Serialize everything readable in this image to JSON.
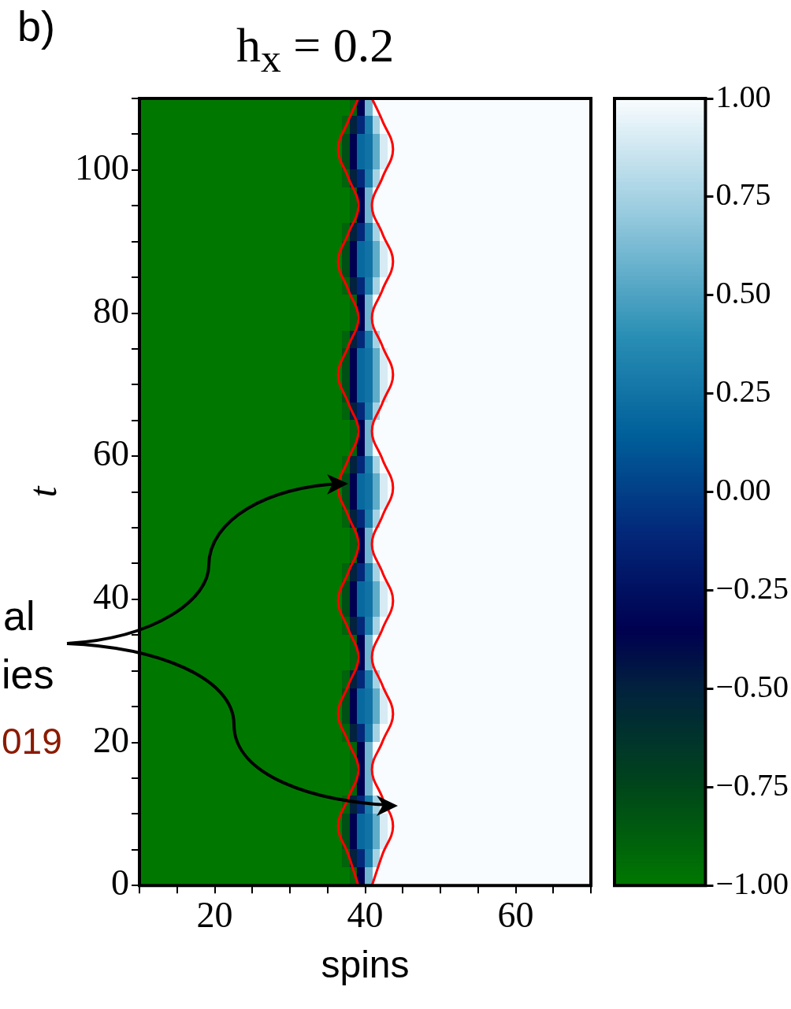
{
  "chart_data": {
    "type": "heatmap",
    "title": "h$_{x}$ = 0.2",
    "xlabel": "spins",
    "ylabel": "t",
    "annotations": [
      "b)",
      "al",
      "ies",
      "019"
    ],
    "xlim": [
      10,
      70
    ],
    "ylim": [
      0,
      110
    ],
    "xticks": [
      {
        "value": 10,
        "label": null
      },
      {
        "value": 15,
        "label": null
      },
      20,
      {
        "value": 25,
        "label": null
      },
      {
        "value": 30,
        "label": null
      },
      {
        "value": 35,
        "label": null
      },
      40,
      {
        "value": 45,
        "label": null
      },
      {
        "value": 50,
        "label": null
      },
      {
        "value": 55,
        "label": null
      },
      60,
      {
        "value": 65,
        "label": null
      },
      {
        "value": 70,
        "label": null
      }
    ],
    "yticks": [
      0,
      {
        "value": 5,
        "label": null
      },
      {
        "value": 10,
        "label": null
      },
      {
        "value": 15,
        "label": null
      },
      20,
      {
        "value": 25,
        "label": null
      },
      {
        "value": 30,
        "label": null
      },
      {
        "value": 35,
        "label": null
      },
      40,
      {
        "value": 45,
        "label": null
      },
      {
        "value": 50,
        "label": null
      },
      {
        "value": 55,
        "label": null
      },
      60,
      {
        "value": 65,
        "label": null
      },
      {
        "value": 70,
        "label": null
      },
      {
        "value": 75,
        "label": null
      },
      80,
      {
        "value": 85,
        "label": null
      },
      {
        "value": 90,
        "label": null
      },
      {
        "value": 95,
        "label": null
      },
      100,
      {
        "value": 105,
        "label": null
      },
      {
        "value": 110,
        "label": null
      }
    ],
    "clim": [
      -1,
      1
    ],
    "cticks": [
      {
        "value": -1,
        "label": "−1.00"
      },
      {
        "value": -0.75,
        "label": "−0.75"
      },
      {
        "value": -0.5,
        "label": "−0.50"
      },
      {
        "value": -0.25,
        "label": "−0.25"
      },
      {
        "value": 0,
        "label": "0.00"
      },
      {
        "value": 0.25,
        "label": "0.25"
      },
      {
        "value": 0.5,
        "label": "0.50"
      },
      {
        "value": 0.75,
        "label": "0.75"
      },
      {
        "value": 1,
        "label": "1.00"
      }
    ],
    "marker": "none",
    "line_style": "solid",
    "series": [
      {
        "type": "line",
        "color": "#ff0000",
        "x": [
          39.1,
          37.75,
          36.4,
          37.75,
          39.1,
          37.75,
          36.4,
          37.75,
          39.1,
          37.75,
          36.4,
          37.75,
          39.1,
          37.75,
          36.4,
          37.75,
          39.1,
          37.75,
          36.4,
          37.75,
          39.1,
          37.75,
          36.4,
          37.75,
          39.1,
          37.75,
          36.4,
          37.75,
          39.1
        ],
        "values": [
          0,
          4.35,
          8.3,
          12.25,
          16.2,
          20.1,
          24,
          27.95,
          31.9,
          35.85,
          39.8,
          43.75,
          47.7,
          51.65,
          55.6,
          59.55,
          63.5,
          67.45,
          71.4,
          75.35,
          79.3,
          83.25,
          87.2,
          91.1,
          95,
          98.95,
          102.9,
          106.85,
          110
        ]
      },
      {
        "type": "line",
        "color": "#ff0000",
        "x": [
          40.9,
          42.3,
          43.7,
          42.3,
          40.9,
          42.3,
          43.7,
          42.3,
          40.9,
          42.3,
          43.7,
          42.3,
          40.9,
          42.3,
          43.7,
          42.3,
          40.9,
          42.3,
          43.7,
          42.3,
          40.9,
          42.3,
          43.7,
          42.3,
          40.9,
          42.3,
          43.7,
          42.3,
          40.9
        ],
        "values": [
          0,
          4.35,
          8.3,
          12.25,
          16.2,
          20.1,
          24,
          27.95,
          31.9,
          35.85,
          39.8,
          43.75,
          47.7,
          51.65,
          55.6,
          59.55,
          63.5,
          67.45,
          71.4,
          75.35,
          79.3,
          83.25,
          87.2,
          91.1,
          95,
          98.95,
          102.9,
          106.85,
          110
        ]
      }
    ],
    "cells": [
      [
        -1,
        -1,
        -1,
        -1,
        -1,
        -1,
        -1,
        -1,
        -1,
        -1,
        -1,
        -1,
        -1,
        -1,
        -1,
        -1,
        -1,
        -1,
        -1,
        -1,
        -1,
        -1,
        -1,
        -1,
        -1,
        -1,
        -1,
        -1,
        -0.9,
        -0.35,
        0.6,
        1,
        1,
        1,
        1,
        1,
        1,
        1,
        1,
        1,
        1,
        1,
        1,
        1,
        1,
        1,
        1,
        1,
        1,
        1,
        1,
        1,
        1,
        1,
        1,
        1,
        1,
        1,
        1,
        1
      ],
      [
        -1,
        -1,
        -1,
        -1,
        -1,
        -1,
        -1,
        -1,
        -1,
        -1,
        -1,
        -1,
        -1,
        -1,
        -1,
        -1,
        -1,
        -1,
        -1,
        -1,
        -1,
        -1,
        -1,
        -1,
        -1,
        -1,
        -1,
        -0.9,
        -0.5,
        -0.1,
        0.3,
        0.75,
        1,
        1,
        1,
        1,
        1,
        1,
        1,
        1,
        1,
        1,
        1,
        1,
        1,
        1,
        1,
        1,
        1,
        1,
        1,
        1,
        1,
        1,
        1,
        1,
        1,
        1,
        1,
        1
      ],
      [
        -1,
        -1,
        -1,
        -1,
        -1,
        -1,
        -1,
        -1,
        -1,
        -1,
        -1,
        -1,
        -1,
        -1,
        -1,
        -1,
        -1,
        -1,
        -1,
        -1,
        -1,
        -1,
        -1,
        -1,
        -1,
        -1,
        -1,
        -0.8,
        -0.35,
        0.2,
        0.25,
        0.55,
        0.9,
        1,
        1,
        1,
        1,
        1,
        1,
        1,
        1,
        1,
        1,
        1,
        1,
        1,
        1,
        1,
        1,
        1,
        1,
        1,
        1,
        1,
        1,
        1,
        1,
        1,
        1,
        1
      ],
      [
        -1,
        -1,
        -1,
        -1,
        -1,
        -1,
        -1,
        -1,
        -1,
        -1,
        -1,
        -1,
        -1,
        -1,
        -1,
        -1,
        -1,
        -1,
        -1,
        -1,
        -1,
        -1,
        -1,
        -1,
        -1,
        -1,
        -1,
        -0.8,
        -0.35,
        0.2,
        0.25,
        0.55,
        0.9,
        1,
        1,
        1,
        1,
        1,
        1,
        1,
        1,
        1,
        1,
        1,
        1,
        1,
        1,
        1,
        1,
        1,
        1,
        1,
        1,
        1,
        1,
        1,
        1,
        1,
        1,
        1
      ],
      [
        -1,
        -1,
        -1,
        -1,
        -1,
        -1,
        -1,
        -1,
        -1,
        -1,
        -1,
        -1,
        -1,
        -1,
        -1,
        -1,
        -1,
        -1,
        -1,
        -1,
        -1,
        -1,
        -1,
        -1,
        -1,
        -1,
        -1,
        -0.9,
        -0.5,
        -0.1,
        0.3,
        0.75,
        1,
        1,
        1,
        1,
        1,
        1,
        1,
        1,
        1,
        1,
        1,
        1,
        1,
        1,
        1,
        1,
        1,
        1,
        1,
        1,
        1,
        1,
        1,
        1,
        1,
        1,
        1,
        1
      ],
      [
        -1,
        -1,
        -1,
        -1,
        -1,
        -1,
        -1,
        -1,
        -1,
        -1,
        -1,
        -1,
        -1,
        -1,
        -1,
        -1,
        -1,
        -1,
        -1,
        -1,
        -1,
        -1,
        -1,
        -1,
        -1,
        -1,
        -1,
        -1,
        -0.9,
        -0.35,
        0.6,
        1,
        1,
        1,
        1,
        1,
        1,
        1,
        1,
        1,
        1,
        1,
        1,
        1,
        1,
        1,
        1,
        1,
        1,
        1,
        1,
        1,
        1,
        1,
        1,
        1,
        1,
        1,
        1,
        1
      ],
      [
        -1,
        -1,
        -1,
        -1,
        -1,
        -1,
        -1,
        -1,
        -1,
        -1,
        -1,
        -1,
        -1,
        -1,
        -1,
        -1,
        -1,
        -1,
        -1,
        -1,
        -1,
        -1,
        -1,
        -1,
        -1,
        -1,
        -1,
        -1,
        -0.9,
        -0.35,
        0.6,
        1,
        1,
        1,
        1,
        1,
        1,
        1,
        1,
        1,
        1,
        1,
        1,
        1,
        1,
        1,
        1,
        1,
        1,
        1,
        1,
        1,
        1,
        1,
        1,
        1,
        1,
        1,
        1,
        1
      ],
      [
        -1,
        -1,
        -1,
        -1,
        -1,
        -1,
        -1,
        -1,
        -1,
        -1,
        -1,
        -1,
        -1,
        -1,
        -1,
        -1,
        -1,
        -1,
        -1,
        -1,
        -1,
        -1,
        -1,
        -1,
        -1,
        -1,
        -1,
        -0.9,
        -0.5,
        -0.1,
        0.3,
        0.75,
        1,
        1,
        1,
        1,
        1,
        1,
        1,
        1,
        1,
        1,
        1,
        1,
        1,
        1,
        1,
        1,
        1,
        1,
        1,
        1,
        1,
        1,
        1,
        1,
        1,
        1,
        1,
        1
      ],
      [
        -1,
        -1,
        -1,
        -1,
        -1,
        -1,
        -1,
        -1,
        -1,
        -1,
        -1,
        -1,
        -1,
        -1,
        -1,
        -1,
        -1,
        -1,
        -1,
        -1,
        -1,
        -1,
        -1,
        -1,
        -1,
        -1,
        -1,
        -0.8,
        -0.35,
        0.2,
        0.25,
        0.55,
        0.9,
        1,
        1,
        1,
        1,
        1,
        1,
        1,
        1,
        1,
        1,
        1,
        1,
        1,
        1,
        1,
        1,
        1,
        1,
        1,
        1,
        1,
        1,
        1,
        1,
        1,
        1,
        1
      ],
      [
        -1,
        -1,
        -1,
        -1,
        -1,
        -1,
        -1,
        -1,
        -1,
        -1,
        -1,
        -1,
        -1,
        -1,
        -1,
        -1,
        -1,
        -1,
        -1,
        -1,
        -1,
        -1,
        -1,
        -1,
        -1,
        -1,
        -1,
        -0.8,
        -0.35,
        0.2,
        0.25,
        0.55,
        0.9,
        1,
        1,
        1,
        1,
        1,
        1,
        1,
        1,
        1,
        1,
        1,
        1,
        1,
        1,
        1,
        1,
        1,
        1,
        1,
        1,
        1,
        1,
        1,
        1,
        1,
        1,
        1
      ],
      [
        -1,
        -1,
        -1,
        -1,
        -1,
        -1,
        -1,
        -1,
        -1,
        -1,
        -1,
        -1,
        -1,
        -1,
        -1,
        -1,
        -1,
        -1,
        -1,
        -1,
        -1,
        -1,
        -1,
        -1,
        -1,
        -1,
        -1,
        -0.9,
        -0.5,
        -0.1,
        0.3,
        0.75,
        1,
        1,
        1,
        1,
        1,
        1,
        1,
        1,
        1,
        1,
        1,
        1,
        1,
        1,
        1,
        1,
        1,
        1,
        1,
        1,
        1,
        1,
        1,
        1,
        1,
        1,
        1,
        1
      ],
      [
        -1,
        -1,
        -1,
        -1,
        -1,
        -1,
        -1,
        -1,
        -1,
        -1,
        -1,
        -1,
        -1,
        -1,
        -1,
        -1,
        -1,
        -1,
        -1,
        -1,
        -1,
        -1,
        -1,
        -1,
        -1,
        -1,
        -1,
        -1,
        -0.9,
        -0.35,
        0.6,
        1,
        1,
        1,
        1,
        1,
        1,
        1,
        1,
        1,
        1,
        1,
        1,
        1,
        1,
        1,
        1,
        1,
        1,
        1,
        1,
        1,
        1,
        1,
        1,
        1,
        1,
        1,
        1,
        1
      ],
      [
        -1,
        -1,
        -1,
        -1,
        -1,
        -1,
        -1,
        -1,
        -1,
        -1,
        -1,
        -1,
        -1,
        -1,
        -1,
        -1,
        -1,
        -1,
        -1,
        -1,
        -1,
        -1,
        -1,
        -1,
        -1,
        -1,
        -1,
        -1,
        -0.9,
        -0.35,
        0.6,
        1,
        1,
        1,
        1,
        1,
        1,
        1,
        1,
        1,
        1,
        1,
        1,
        1,
        1,
        1,
        1,
        1,
        1,
        1,
        1,
        1,
        1,
        1,
        1,
        1,
        1,
        1,
        1,
        1
      ],
      [
        -1,
        -1,
        -1,
        -1,
        -1,
        -1,
        -1,
        -1,
        -1,
        -1,
        -1,
        -1,
        -1,
        -1,
        -1,
        -1,
        -1,
        -1,
        -1,
        -1,
        -1,
        -1,
        -1,
        -1,
        -1,
        -1,
        -1,
        -0.9,
        -0.5,
        -0.1,
        0.3,
        0.75,
        1,
        1,
        1,
        1,
        1,
        1,
        1,
        1,
        1,
        1,
        1,
        1,
        1,
        1,
        1,
        1,
        1,
        1,
        1,
        1,
        1,
        1,
        1,
        1,
        1,
        1,
        1,
        1
      ],
      [
        -1,
        -1,
        -1,
        -1,
        -1,
        -1,
        -1,
        -1,
        -1,
        -1,
        -1,
        -1,
        -1,
        -1,
        -1,
        -1,
        -1,
        -1,
        -1,
        -1,
        -1,
        -1,
        -1,
        -1,
        -1,
        -1,
        -1,
        -0.8,
        -0.35,
        0.2,
        0.25,
        0.55,
        0.9,
        1,
        1,
        1,
        1,
        1,
        1,
        1,
        1,
        1,
        1,
        1,
        1,
        1,
        1,
        1,
        1,
        1,
        1,
        1,
        1,
        1,
        1,
        1,
        1,
        1,
        1,
        1
      ],
      [
        -1,
        -1,
        -1,
        -1,
        -1,
        -1,
        -1,
        -1,
        -1,
        -1,
        -1,
        -1,
        -1,
        -1,
        -1,
        -1,
        -1,
        -1,
        -1,
        -1,
        -1,
        -1,
        -1,
        -1,
        -1,
        -1,
        -1,
        -0.8,
        -0.35,
        0.2,
        0.25,
        0.55,
        0.9,
        1,
        1,
        1,
        1,
        1,
        1,
        1,
        1,
        1,
        1,
        1,
        1,
        1,
        1,
        1,
        1,
        1,
        1,
        1,
        1,
        1,
        1,
        1,
        1,
        1,
        1,
        1
      ],
      [
        -1,
        -1,
        -1,
        -1,
        -1,
        -1,
        -1,
        -1,
        -1,
        -1,
        -1,
        -1,
        -1,
        -1,
        -1,
        -1,
        -1,
        -1,
        -1,
        -1,
        -1,
        -1,
        -1,
        -1,
        -1,
        -1,
        -1,
        -0.8,
        -0.35,
        0.2,
        0.25,
        0.55,
        0.9,
        1,
        1,
        1,
        1,
        1,
        1,
        1,
        1,
        1,
        1,
        1,
        1,
        1,
        1,
        1,
        1,
        1,
        1,
        1,
        1,
        1,
        1,
        1,
        1,
        1,
        1,
        1
      ],
      [
        -1,
        -1,
        -1,
        -1,
        -1,
        -1,
        -1,
        -1,
        -1,
        -1,
        -1,
        -1,
        -1,
        -1,
        -1,
        -1,
        -1,
        -1,
        -1,
        -1,
        -1,
        -1,
        -1,
        -1,
        -1,
        -1,
        -1,
        -0.9,
        -0.5,
        -0.1,
        0.3,
        0.75,
        1,
        1,
        1,
        1,
        1,
        1,
        1,
        1,
        1,
        1,
        1,
        1,
        1,
        1,
        1,
        1,
        1,
        1,
        1,
        1,
        1,
        1,
        1,
        1,
        1,
        1,
        1,
        1
      ],
      [
        -1,
        -1,
        -1,
        -1,
        -1,
        -1,
        -1,
        -1,
        -1,
        -1,
        -1,
        -1,
        -1,
        -1,
        -1,
        -1,
        -1,
        -1,
        -1,
        -1,
        -1,
        -1,
        -1,
        -1,
        -1,
        -1,
        -1,
        -1,
        -0.9,
        -0.35,
        0.6,
        1,
        1,
        1,
        1,
        1,
        1,
        1,
        1,
        1,
        1,
        1,
        1,
        1,
        1,
        1,
        1,
        1,
        1,
        1,
        1,
        1,
        1,
        1,
        1,
        1,
        1,
        1,
        1,
        1
      ],
      [
        -1,
        -1,
        -1,
        -1,
        -1,
        -1,
        -1,
        -1,
        -1,
        -1,
        -1,
        -1,
        -1,
        -1,
        -1,
        -1,
        -1,
        -1,
        -1,
        -1,
        -1,
        -1,
        -1,
        -1,
        -1,
        -1,
        -1,
        -1,
        -0.9,
        -0.35,
        0.6,
        1,
        1,
        1,
        1,
        1,
        1,
        1,
        1,
        1,
        1,
        1,
        1,
        1,
        1,
        1,
        1,
        1,
        1,
        1,
        1,
        1,
        1,
        1,
        1,
        1,
        1,
        1,
        1,
        1
      ],
      [
        -1,
        -1,
        -1,
        -1,
        -1,
        -1,
        -1,
        -1,
        -1,
        -1,
        -1,
        -1,
        -1,
        -1,
        -1,
        -1,
        -1,
        -1,
        -1,
        -1,
        -1,
        -1,
        -1,
        -1,
        -1,
        -1,
        -1,
        -0.9,
        -0.5,
        -0.1,
        0.3,
        0.75,
        1,
        1,
        1,
        1,
        1,
        1,
        1,
        1,
        1,
        1,
        1,
        1,
        1,
        1,
        1,
        1,
        1,
        1,
        1,
        1,
        1,
        1,
        1,
        1,
        1,
        1,
        1,
        1
      ],
      [
        -1,
        -1,
        -1,
        -1,
        -1,
        -1,
        -1,
        -1,
        -1,
        -1,
        -1,
        -1,
        -1,
        -1,
        -1,
        -1,
        -1,
        -1,
        -1,
        -1,
        -1,
        -1,
        -1,
        -1,
        -1,
        -1,
        -1,
        -0.8,
        -0.35,
        0.2,
        0.25,
        0.55,
        0.9,
        1,
        1,
        1,
        1,
        1,
        1,
        1,
        1,
        1,
        1,
        1,
        1,
        1,
        1,
        1,
        1,
        1,
        1,
        1,
        1,
        1,
        1,
        1,
        1,
        1,
        1,
        1
      ],
      [
        -1,
        -1,
        -1,
        -1,
        -1,
        -1,
        -1,
        -1,
        -1,
        -1,
        -1,
        -1,
        -1,
        -1,
        -1,
        -1,
        -1,
        -1,
        -1,
        -1,
        -1,
        -1,
        -1,
        -1,
        -1,
        -1,
        -1,
        -0.8,
        -0.35,
        0.2,
        0.25,
        0.55,
        0.9,
        1,
        1,
        1,
        1,
        1,
        1,
        1,
        1,
        1,
        1,
        1,
        1,
        1,
        1,
        1,
        1,
        1,
        1,
        1,
        1,
        1,
        1,
        1,
        1,
        1,
        1,
        1
      ],
      [
        -1,
        -1,
        -1,
        -1,
        -1,
        -1,
        -1,
        -1,
        -1,
        -1,
        -1,
        -1,
        -1,
        -1,
        -1,
        -1,
        -1,
        -1,
        -1,
        -1,
        -1,
        -1,
        -1,
        -1,
        -1,
        -1,
        -1,
        -0.9,
        -0.5,
        -0.1,
        0.3,
        0.75,
        1,
        1,
        1,
        1,
        1,
        1,
        1,
        1,
        1,
        1,
        1,
        1,
        1,
        1,
        1,
        1,
        1,
        1,
        1,
        1,
        1,
        1,
        1,
        1,
        1,
        1,
        1,
        1
      ],
      [
        -1,
        -1,
        -1,
        -1,
        -1,
        -1,
        -1,
        -1,
        -1,
        -1,
        -1,
        -1,
        -1,
        -1,
        -1,
        -1,
        -1,
        -1,
        -1,
        -1,
        -1,
        -1,
        -1,
        -1,
        -1,
        -1,
        -1,
        -1,
        -0.9,
        -0.35,
        0.6,
        1,
        1,
        1,
        1,
        1,
        1,
        1,
        1,
        1,
        1,
        1,
        1,
        1,
        1,
        1,
        1,
        1,
        1,
        1,
        1,
        1,
        1,
        1,
        1,
        1,
        1,
        1,
        1,
        1
      ],
      [
        -1,
        -1,
        -1,
        -1,
        -1,
        -1,
        -1,
        -1,
        -1,
        -1,
        -1,
        -1,
        -1,
        -1,
        -1,
        -1,
        -1,
        -1,
        -1,
        -1,
        -1,
        -1,
        -1,
        -1,
        -1,
        -1,
        -1,
        -1,
        -0.9,
        -0.35,
        0.6,
        1,
        1,
        1,
        1,
        1,
        1,
        1,
        1,
        1,
        1,
        1,
        1,
        1,
        1,
        1,
        1,
        1,
        1,
        1,
        1,
        1,
        1,
        1,
        1,
        1,
        1,
        1,
        1,
        1
      ],
      [
        -1,
        -1,
        -1,
        -1,
        -1,
        -1,
        -1,
        -1,
        -1,
        -1,
        -1,
        -1,
        -1,
        -1,
        -1,
        -1,
        -1,
        -1,
        -1,
        -1,
        -1,
        -1,
        -1,
        -1,
        -1,
        -1,
        -1,
        -0.9,
        -0.5,
        -0.1,
        0.3,
        0.75,
        1,
        1,
        1,
        1,
        1,
        1,
        1,
        1,
        1,
        1,
        1,
        1,
        1,
        1,
        1,
        1,
        1,
        1,
        1,
        1,
        1,
        1,
        1,
        1,
        1,
        1,
        1,
        1
      ],
      [
        -1,
        -1,
        -1,
        -1,
        -1,
        -1,
        -1,
        -1,
        -1,
        -1,
        -1,
        -1,
        -1,
        -1,
        -1,
        -1,
        -1,
        -1,
        -1,
        -1,
        -1,
        -1,
        -1,
        -1,
        -1,
        -1,
        -1,
        -0.8,
        -0.35,
        0.2,
        0.25,
        0.55,
        0.9,
        1,
        1,
        1,
        1,
        1,
        1,
        1,
        1,
        1,
        1,
        1,
        1,
        1,
        1,
        1,
        1,
        1,
        1,
        1,
        1,
        1,
        1,
        1,
        1,
        1,
        1,
        1
      ],
      [
        -1,
        -1,
        -1,
        -1,
        -1,
        -1,
        -1,
        -1,
        -1,
        -1,
        -1,
        -1,
        -1,
        -1,
        -1,
        -1,
        -1,
        -1,
        -1,
        -1,
        -1,
        -1,
        -1,
        -1,
        -1,
        -1,
        -1,
        -0.8,
        -0.35,
        0.2,
        0.25,
        0.55,
        0.9,
        1,
        1,
        1,
        1,
        1,
        1,
        1,
        1,
        1,
        1,
        1,
        1,
        1,
        1,
        1,
        1,
        1,
        1,
        1,
        1,
        1,
        1,
        1,
        1,
        1,
        1,
        1
      ],
      [
        -1,
        -1,
        -1,
        -1,
        -1,
        -1,
        -1,
        -1,
        -1,
        -1,
        -1,
        -1,
        -1,
        -1,
        -1,
        -1,
        -1,
        -1,
        -1,
        -1,
        -1,
        -1,
        -1,
        -1,
        -1,
        -1,
        -1,
        -0.9,
        -0.5,
        -0.1,
        0.3,
        0.75,
        1,
        1,
        1,
        1,
        1,
        1,
        1,
        1,
        1,
        1,
        1,
        1,
        1,
        1,
        1,
        1,
        1,
        1,
        1,
        1,
        1,
        1,
        1,
        1,
        1,
        1,
        1,
        1
      ],
      [
        -1,
        -1,
        -1,
        -1,
        -1,
        -1,
        -1,
        -1,
        -1,
        -1,
        -1,
        -1,
        -1,
        -1,
        -1,
        -1,
        -1,
        -1,
        -1,
        -1,
        -1,
        -1,
        -1,
        -1,
        -1,
        -1,
        -1,
        -1,
        -0.9,
        -0.35,
        0.6,
        1,
        1,
        1,
        1,
        1,
        1,
        1,
        1,
        1,
        1,
        1,
        1,
        1,
        1,
        1,
        1,
        1,
        1,
        1,
        1,
        1,
        1,
        1,
        1,
        1,
        1,
        1,
        1,
        1
      ],
      [
        -1,
        -1,
        -1,
        -1,
        -1,
        -1,
        -1,
        -1,
        -1,
        -1,
        -1,
        -1,
        -1,
        -1,
        -1,
        -1,
        -1,
        -1,
        -1,
        -1,
        -1,
        -1,
        -1,
        -1,
        -1,
        -1,
        -1,
        -1,
        -0.9,
        -0.35,
        0.6,
        1,
        1,
        1,
        1,
        1,
        1,
        1,
        1,
        1,
        1,
        1,
        1,
        1,
        1,
        1,
        1,
        1,
        1,
        1,
        1,
        1,
        1,
        1,
        1,
        1,
        1,
        1,
        1,
        1
      ],
      [
        -1,
        -1,
        -1,
        -1,
        -1,
        -1,
        -1,
        -1,
        -1,
        -1,
        -1,
        -1,
        -1,
        -1,
        -1,
        -1,
        -1,
        -1,
        -1,
        -1,
        -1,
        -1,
        -1,
        -1,
        -1,
        -1,
        -1,
        -0.9,
        -0.5,
        -0.1,
        0.3,
        0.75,
        1,
        1,
        1,
        1,
        1,
        1,
        1,
        1,
        1,
        1,
        1,
        1,
        1,
        1,
        1,
        1,
        1,
        1,
        1,
        1,
        1,
        1,
        1,
        1,
        1,
        1,
        1,
        1
      ],
      [
        -1,
        -1,
        -1,
        -1,
        -1,
        -1,
        -1,
        -1,
        -1,
        -1,
        -1,
        -1,
        -1,
        -1,
        -1,
        -1,
        -1,
        -1,
        -1,
        -1,
        -1,
        -1,
        -1,
        -1,
        -1,
        -1,
        -1,
        -0.8,
        -0.35,
        0.2,
        0.25,
        0.55,
        0.9,
        1,
        1,
        1,
        1,
        1,
        1,
        1,
        1,
        1,
        1,
        1,
        1,
        1,
        1,
        1,
        1,
        1,
        1,
        1,
        1,
        1,
        1,
        1,
        1,
        1,
        1,
        1
      ],
      [
        -1,
        -1,
        -1,
        -1,
        -1,
        -1,
        -1,
        -1,
        -1,
        -1,
        -1,
        -1,
        -1,
        -1,
        -1,
        -1,
        -1,
        -1,
        -1,
        -1,
        -1,
        -1,
        -1,
        -1,
        -1,
        -1,
        -1,
        -0.8,
        -0.35,
        0.2,
        0.25,
        0.55,
        0.9,
        1,
        1,
        1,
        1,
        1,
        1,
        1,
        1,
        1,
        1,
        1,
        1,
        1,
        1,
        1,
        1,
        1,
        1,
        1,
        1,
        1,
        1,
        1,
        1,
        1,
        1,
        1
      ],
      [
        -1,
        -1,
        -1,
        -1,
        -1,
        -1,
        -1,
        -1,
        -1,
        -1,
        -1,
        -1,
        -1,
        -1,
        -1,
        -1,
        -1,
        -1,
        -1,
        -1,
        -1,
        -1,
        -1,
        -1,
        -1,
        -1,
        -1,
        -0.9,
        -0.5,
        -0.1,
        0.3,
        0.75,
        1,
        1,
        1,
        1,
        1,
        1,
        1,
        1,
        1,
        1,
        1,
        1,
        1,
        1,
        1,
        1,
        1,
        1,
        1,
        1,
        1,
        1,
        1,
        1,
        1,
        1,
        1,
        1
      ],
      [
        -1,
        -1,
        -1,
        -1,
        -1,
        -1,
        -1,
        -1,
        -1,
        -1,
        -1,
        -1,
        -1,
        -1,
        -1,
        -1,
        -1,
        -1,
        -1,
        -1,
        -1,
        -1,
        -1,
        -1,
        -1,
        -1,
        -1,
        -1,
        -0.9,
        -0.35,
        0.6,
        1,
        1,
        1,
        1,
        1,
        1,
        1,
        1,
        1,
        1,
        1,
        1,
        1,
        1,
        1,
        1,
        1,
        1,
        1,
        1,
        1,
        1,
        1,
        1,
        1,
        1,
        1,
        1,
        1
      ],
      [
        -1,
        -1,
        -1,
        -1,
        -1,
        -1,
        -1,
        -1,
        -1,
        -1,
        -1,
        -1,
        -1,
        -1,
        -1,
        -1,
        -1,
        -1,
        -1,
        -1,
        -1,
        -1,
        -1,
        -1,
        -1,
        -1,
        -1,
        -1,
        -0.9,
        -0.35,
        0.6,
        1,
        1,
        1,
        1,
        1,
        1,
        1,
        1,
        1,
        1,
        1,
        1,
        1,
        1,
        1,
        1,
        1,
        1,
        1,
        1,
        1,
        1,
        1,
        1,
        1,
        1,
        1,
        1,
        1
      ],
      [
        -1,
        -1,
        -1,
        -1,
        -1,
        -1,
        -1,
        -1,
        -1,
        -1,
        -1,
        -1,
        -1,
        -1,
        -1,
        -1,
        -1,
        -1,
        -1,
        -1,
        -1,
        -1,
        -1,
        -1,
        -1,
        -1,
        -1,
        -1,
        -0.9,
        -0.35,
        0.6,
        1,
        1,
        1,
        1,
        1,
        1,
        1,
        1,
        1,
        1,
        1,
        1,
        1,
        1,
        1,
        1,
        1,
        1,
        1,
        1,
        1,
        1,
        1,
        1,
        1,
        1,
        1,
        1,
        1
      ],
      [
        -1,
        -1,
        -1,
        -1,
        -1,
        -1,
        -1,
        -1,
        -1,
        -1,
        -1,
        -1,
        -1,
        -1,
        -1,
        -1,
        -1,
        -1,
        -1,
        -1,
        -1,
        -1,
        -1,
        -1,
        -1,
        -1,
        -1,
        -0.9,
        -0.5,
        -0.1,
        0.3,
        0.75,
        1,
        1,
        1,
        1,
        1,
        1,
        1,
        1,
        1,
        1,
        1,
        1,
        1,
        1,
        1,
        1,
        1,
        1,
        1,
        1,
        1,
        1,
        1,
        1,
        1,
        1,
        1,
        1
      ],
      [
        -1,
        -1,
        -1,
        -1,
        -1,
        -1,
        -1,
        -1,
        -1,
        -1,
        -1,
        -1,
        -1,
        -1,
        -1,
        -1,
        -1,
        -1,
        -1,
        -1,
        -1,
        -1,
        -1,
        -1,
        -1,
        -1,
        -1,
        -0.8,
        -0.35,
        0.2,
        0.25,
        0.55,
        0.9,
        1,
        1,
        1,
        1,
        1,
        1,
        1,
        1,
        1,
        1,
        1,
        1,
        1,
        1,
        1,
        1,
        1,
        1,
        1,
        1,
        1,
        1,
        1,
        1,
        1,
        1,
        1
      ],
      [
        -1,
        -1,
        -1,
        -1,
        -1,
        -1,
        -1,
        -1,
        -1,
        -1,
        -1,
        -1,
        -1,
        -1,
        -1,
        -1,
        -1,
        -1,
        -1,
        -1,
        -1,
        -1,
        -1,
        -1,
        -1,
        -1,
        -1,
        -0.8,
        -0.35,
        0.2,
        0.25,
        0.55,
        0.9,
        1,
        1,
        1,
        1,
        1,
        1,
        1,
        1,
        1,
        1,
        1,
        1,
        1,
        1,
        1,
        1,
        1,
        1,
        1,
        1,
        1,
        1,
        1,
        1,
        1,
        1,
        1
      ],
      [
        -1,
        -1,
        -1,
        -1,
        -1,
        -1,
        -1,
        -1,
        -1,
        -1,
        -1,
        -1,
        -1,
        -1,
        -1,
        -1,
        -1,
        -1,
        -1,
        -1,
        -1,
        -1,
        -1,
        -1,
        -1,
        -1,
        -1,
        -0.9,
        -0.5,
        -0.1,
        0.3,
        0.75,
        1,
        1,
        1,
        1,
        1,
        1,
        1,
        1,
        1,
        1,
        1,
        1,
        1,
        1,
        1,
        1,
        1,
        1,
        1,
        1,
        1,
        1,
        1,
        1,
        1,
        1,
        1,
        1
      ],
      [
        -1,
        -1,
        -1,
        -1,
        -1,
        -1,
        -1,
        -1,
        -1,
        -1,
        -1,
        -1,
        -1,
        -1,
        -1,
        -1,
        -1,
        -1,
        -1,
        -1,
        -1,
        -1,
        -1,
        -1,
        -1,
        -1,
        -1,
        -1,
        -0.9,
        -0.35,
        0.6,
        1,
        1,
        1,
        1,
        1,
        1,
        1,
        1,
        1,
        1,
        1,
        1,
        1,
        1,
        1,
        1,
        1,
        1,
        1,
        1,
        1,
        1,
        1,
        1,
        1,
        1,
        1,
        1,
        1
      ]
    ]
  }
}
